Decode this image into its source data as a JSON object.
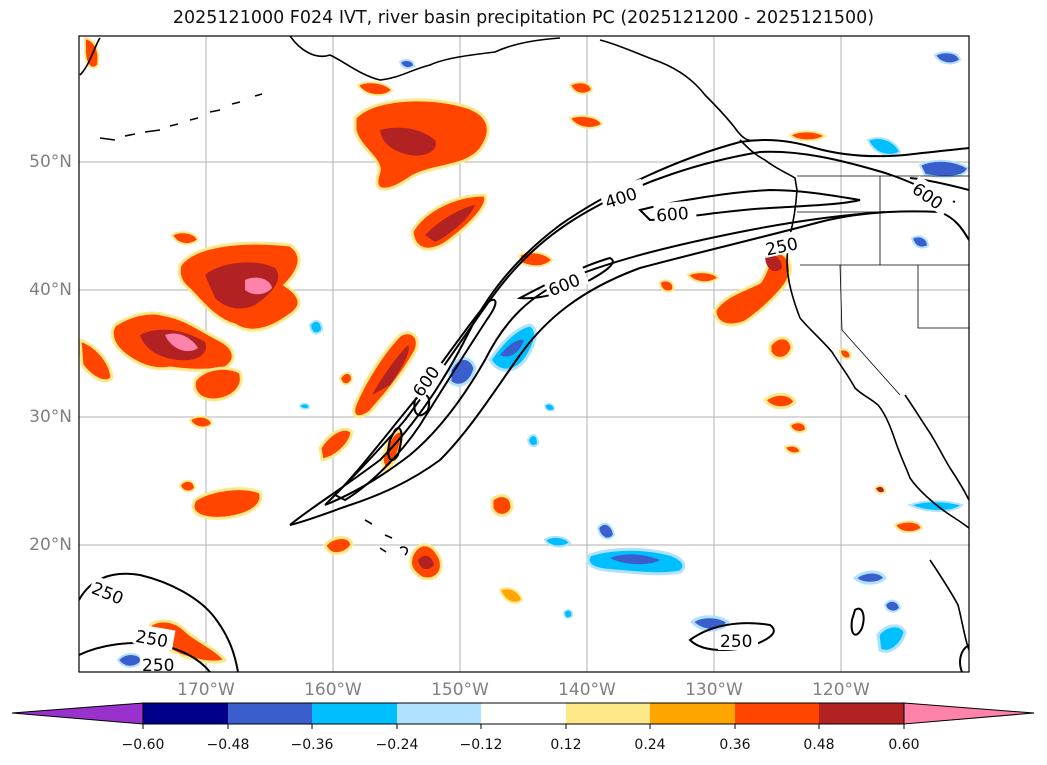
{
  "title": "2025121000 F024 IVT, river basin precipitation PC (2025121200 - 2025121500)",
  "map": {
    "lat_labels": [
      "50°N",
      "40°N",
      "30°N",
      "20°N"
    ],
    "lon_labels": [
      "170°W",
      "160°W",
      "150°W",
      "140°W",
      "130°W",
      "120°W"
    ],
    "ivt_contour_labels": [
      "400",
      "600",
      "600",
      "600",
      "600",
      "250",
      "250",
      "250",
      "250",
      "250"
    ]
  },
  "colorbar": {
    "tick_labels": [
      "−0.60",
      "−0.48",
      "−0.36",
      "−0.24",
      "−0.12",
      "0.12",
      "0.24",
      "0.36",
      "0.48",
      "0.60"
    ],
    "colors": [
      "#9932cc",
      "#00008b",
      "#3a5fcd",
      "#00bfff",
      "#b0e2ff",
      "#ffffff",
      "#fee888",
      "#ffa500",
      "#ff4500",
      "#b22222",
      "#ff82ab"
    ]
  },
  "colors": {
    "grid": "#b0b0b0",
    "coast": "#000000",
    "axis_label": "#808080"
  }
}
